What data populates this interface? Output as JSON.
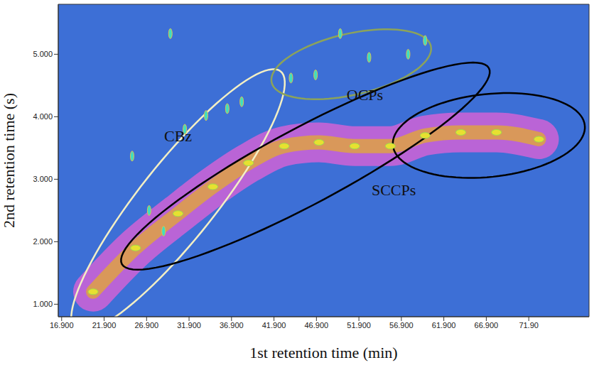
{
  "chart_data": {
    "type": "scatter",
    "x_label": "1st retention time (min)",
    "y_label": "2nd retention time (s)",
    "xlim": [
      16.5,
      79
    ],
    "xticks": [
      {
        "value": 16.9,
        "label": "16.900"
      },
      {
        "value": 21.9,
        "label": "21.900"
      },
      {
        "value": 26.9,
        "label": "26.900"
      },
      {
        "value": 31.9,
        "label": "31.900"
      },
      {
        "value": 36.9,
        "label": "36.900"
      },
      {
        "value": 41.9,
        "label": "41.900"
      },
      {
        "value": 46.9,
        "label": "46.900"
      },
      {
        "value": 51.9,
        "label": "51.900"
      },
      {
        "value": 56.9,
        "label": "56.900"
      },
      {
        "value": 61.9,
        "label": "61.900"
      },
      {
        "value": 66.9,
        "label": "66.900"
      },
      {
        "value": 71.9,
        "label": "71.90"
      }
    ],
    "ylim": [
      0.8,
      5.8
    ],
    "yticks": [
      {
        "value": 1,
        "label": "1.000"
      },
      {
        "value": 2,
        "label": "2.000"
      },
      {
        "value": 3,
        "label": "3.000"
      },
      {
        "value": 4,
        "label": "4.000"
      },
      {
        "value": 5,
        "label": "5.000"
      }
    ],
    "grid": false,
    "regions": [
      {
        "label": "CBz",
        "color": "#f3efc4",
        "label_position": [
          30.6,
          3.7
        ],
        "ellipses": [
          {
            "center": [
              30.6,
              2.66
            ],
            "axis_end_1": [
              42.65,
              4.73
            ],
            "axis_end_2": [
              34.2,
              2.3
            ]
          }
        ],
        "peaks": [
          [
            25.2,
            3.37
          ],
          [
            27.2,
            2.5
          ],
          [
            28.9,
            2.17
          ],
          [
            31.4,
            3.8
          ],
          [
            33.9,
            4.02
          ],
          [
            36.4,
            4.13
          ],
          [
            38.1,
            4.24
          ]
        ]
      },
      {
        "label": "OCPs",
        "color": "#8ca35a",
        "label_position": [
          52.6,
          4.35
        ],
        "ellipses": [
          {
            "center": [
              51.0,
              4.84
            ],
            "axis_end_1": [
              60.4,
              5.11
            ],
            "axis_end_2": [
              51.4,
              4.35
            ]
          }
        ],
        "peaks": [
          [
            59.7,
            5.22
          ],
          [
            57.7,
            5.0
          ],
          [
            53.1,
            4.95
          ],
          [
            46.8,
            4.67
          ],
          [
            43.9,
            4.62
          ],
          [
            49.7,
            5.33
          ],
          [
            29.7,
            5.33
          ]
        ]
      },
      {
        "label": "SCCPs",
        "color": "#000000",
        "label_position": [
          56.0,
          2.83
        ],
        "ellipses": [
          {
            "center": [
              45.6,
              3.21
            ],
            "axis_end_1": [
              67.2,
              4.78
            ],
            "axis_end_2": [
              47.8,
              2.68
            ]
          },
          {
            "center": [
              67.2,
              3.7
            ],
            "axis_end_1": [
              78.5,
              3.86
            ],
            "axis_end_2": [
              67.7,
              3.04
            ]
          }
        ],
        "peaks": [
          [
            20.6,
            1.2
          ],
          [
            25.6,
            1.9
          ],
          [
            30.6,
            2.45
          ],
          [
            34.7,
            2.88
          ],
          [
            38.9,
            3.26
          ],
          [
            43.1,
            3.53
          ],
          [
            47.2,
            3.59
          ],
          [
            51.4,
            3.53
          ],
          [
            55.6,
            3.53
          ],
          [
            59.7,
            3.7
          ],
          [
            63.9,
            3.75
          ],
          [
            68.1,
            3.75
          ],
          [
            73.1,
            3.64
          ]
        ]
      }
    ]
  }
}
